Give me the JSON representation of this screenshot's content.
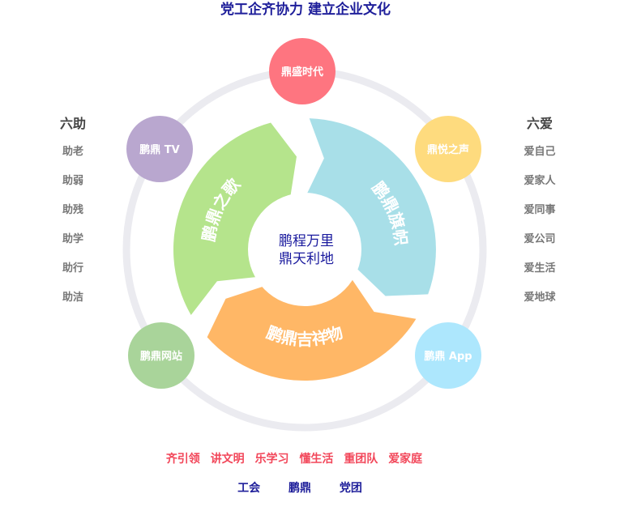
{
  "title": "党工企齐协力   建立企业文化",
  "left_list": {
    "heading": "六助",
    "items": [
      "助老",
      "助弱",
      "助残",
      "助学",
      "助行",
      "助洁"
    ]
  },
  "right_list": {
    "heading": "六爱",
    "items": [
      "爱自己",
      "爱家人",
      "爱同事",
      "爱公司",
      "爱生活",
      "爱地球"
    ]
  },
  "center": {
    "line1": "鹏程万里",
    "line2": "鼎天利地"
  },
  "segments": [
    {
      "label": "鹏鼎之歌",
      "color": "#b5e48c"
    },
    {
      "label": "鹏鼎旗帜",
      "color": "#a8dfe8"
    },
    {
      "label": "鹏鼎吉祥物",
      "color": "#ffb766"
    }
  ],
  "satellites": [
    {
      "label": "鼎盛时代",
      "color": "#fe7580"
    },
    {
      "label": "鼎悦之声",
      "color": "#fedb7e"
    },
    {
      "label": "鹏鼎 App",
      "color": "#ade7fd"
    },
    {
      "label": "鹏鼎网站",
      "color": "#a9d49a"
    },
    {
      "label": "鹏鼎 TV",
      "color": "#b9a7cf"
    }
  ],
  "ring_color": "#ebebf0",
  "slogans": [
    "齐引领",
    "讲文明",
    "乐学习",
    "懂生活",
    "重团队",
    "爱家庭"
  ],
  "orgs": [
    "工会",
    "鹏鼎",
    "党团"
  ]
}
